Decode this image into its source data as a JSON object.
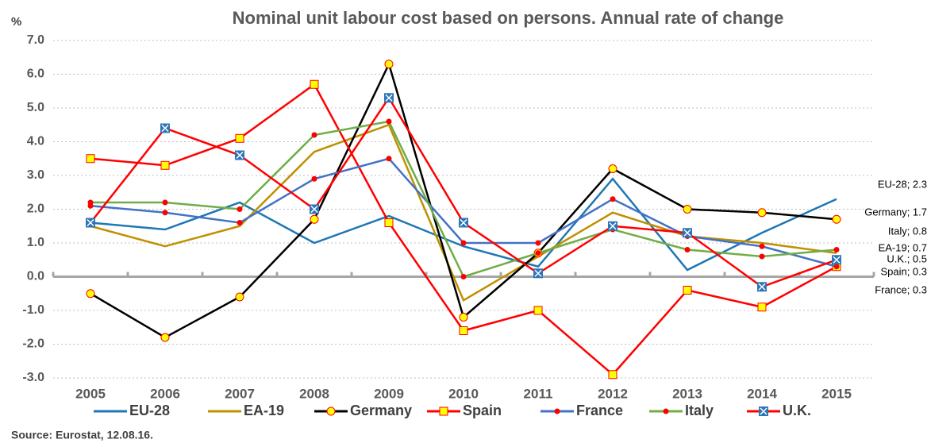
{
  "chart_data": {
    "type": "line",
    "title": "Nominal unit labour cost based on persons. Annual rate of change",
    "y_label": "%",
    "source": "Source: Eurostat, 12.08.16.",
    "categories": [
      "2005",
      "2006",
      "2007",
      "2008",
      "2009",
      "2010",
      "2011",
      "2012",
      "2013",
      "2014",
      "2015"
    ],
    "ylim": [
      -3,
      7
    ],
    "yticks": [
      {
        "value": -3,
        "label": "-3.0"
      },
      {
        "value": -2,
        "label": "-2.0"
      },
      {
        "value": -1,
        "label": "-1.0"
      },
      {
        "value": 0,
        "label": "0.0"
      },
      {
        "value": 1,
        "label": "1.0"
      },
      {
        "value": 2,
        "label": "2.0"
      },
      {
        "value": 3,
        "label": "3.0"
      },
      {
        "value": 4,
        "label": "4.0"
      },
      {
        "value": 5,
        "label": "5.0"
      },
      {
        "value": 6,
        "label": "6.0"
      },
      {
        "value": 7,
        "label": "7.0"
      }
    ],
    "grid": true,
    "legend": "bottom",
    "series": [
      {
        "name": "EU-28",
        "color": "#1f77b4",
        "marker": "none",
        "values": [
          1.6,
          1.4,
          2.2,
          1.0,
          1.8,
          0.9,
          0.3,
          2.9,
          0.2,
          1.3,
          2.3
        ]
      },
      {
        "name": "EA-19",
        "color": "#bf9000",
        "marker": "none",
        "values": [
          1.5,
          0.9,
          1.5,
          3.7,
          4.5,
          -0.7,
          0.6,
          1.9,
          1.2,
          1.0,
          0.7
        ]
      },
      {
        "name": "Germany",
        "color": "#000000",
        "marker": "circle",
        "marker_color": "#ffff00",
        "marker_edge": "#ff0000",
        "values": [
          -0.5,
          -1.8,
          -0.6,
          1.7,
          6.3,
          -1.2,
          0.7,
          3.2,
          2.0,
          1.9,
          1.7
        ]
      },
      {
        "name": "Spain",
        "color": "#ff0000",
        "marker": "square",
        "marker_color": "#ffff00",
        "marker_edge": "#ff0000",
        "values": [
          3.5,
          3.3,
          4.1,
          5.7,
          1.6,
          -1.6,
          -1.0,
          -2.9,
          -0.4,
          -0.9,
          0.3
        ]
      },
      {
        "name": "France",
        "color": "#4472c4",
        "marker": "dot",
        "marker_color": "#ff0000",
        "values": [
          2.1,
          1.9,
          1.6,
          2.9,
          3.5,
          1.0,
          1.0,
          2.3,
          1.2,
          0.9,
          0.3
        ]
      },
      {
        "name": "Italy",
        "color": "#70ad47",
        "marker": "dot",
        "marker_color": "#ff0000",
        "values": [
          2.2,
          2.2,
          2.0,
          4.2,
          4.6,
          0.0,
          0.7,
          1.4,
          0.8,
          0.6,
          0.8
        ]
      },
      {
        "name": "U.K.",
        "color": "#ff0000",
        "marker": "xsquare",
        "marker_color": "#2e75b6",
        "values": [
          1.6,
          4.4,
          3.6,
          2.0,
          5.3,
          1.6,
          0.1,
          1.5,
          1.3,
          -0.3,
          0.5
        ]
      }
    ],
    "annotations": [
      "EU-28; 2.3",
      "Germany; 1.7",
      "Italy; 0.8",
      "EA-19; 0.7",
      "U.K.; 0.5",
      "Spain; 0.3",
      "France; 0.3"
    ]
  }
}
